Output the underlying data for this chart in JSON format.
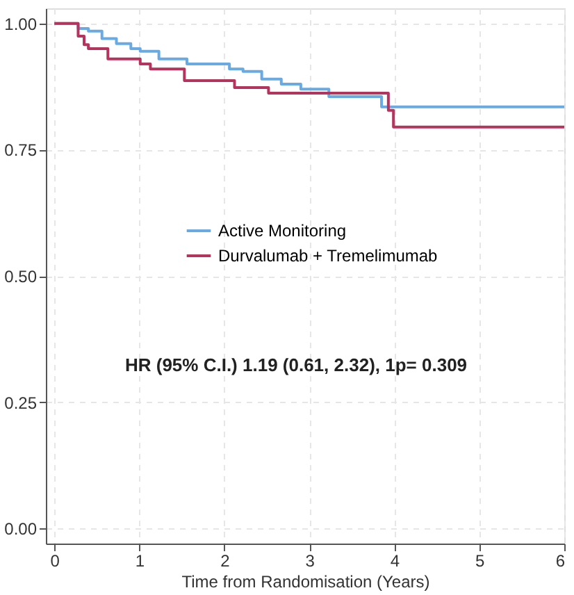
{
  "chart_data": {
    "type": "step",
    "xlabel": "Time from Randomisation (Years)",
    "xlim": [
      -0.1,
      6.0
    ],
    "xticks": [
      0,
      1,
      2,
      3,
      4,
      5,
      6
    ],
    "ylim": [
      -0.03,
      1.03
    ],
    "yticks": [
      {
        "value": 0,
        "label": "0.00"
      },
      {
        "value": 0.25,
        "label": "0.25"
      },
      {
        "value": 0.5,
        "label": "0.50"
      },
      {
        "value": 0.75,
        "label": "0.75"
      },
      {
        "value": 1,
        "label": "1.00"
      }
    ],
    "grid": true,
    "legend": "center",
    "line_style": "solid",
    "marker": "none",
    "annotations": [
      "HR (95% C.I.) 1.19 (0.61, 2.32), 1p= 0.309"
    ],
    "series": [
      {
        "name": "Active Monitoring",
        "color": "#6aaae2",
        "x": [
          0,
          0.28,
          0.4,
          0.56,
          0.73,
          0.9,
          1.01,
          1.23,
          1.56,
          2.06,
          2.22,
          2.44,
          2.67,
          2.9,
          3.23,
          3.85,
          6.0
        ],
        "values": [
          1.0,
          0.99,
          0.985,
          0.97,
          0.96,
          0.95,
          0.945,
          0.93,
          0.92,
          0.91,
          0.905,
          0.89,
          0.88,
          0.87,
          0.855,
          0.835,
          0.835
        ]
      },
      {
        "name": "Durvalumab + Tremelimumab",
        "color": "#b5345e",
        "x": [
          0,
          0.28,
          0.35,
          0.4,
          0.63,
          1.01,
          1.13,
          1.53,
          2.12,
          2.52,
          3.93,
          3.99,
          6.0
        ],
        "values": [
          1.0,
          0.975,
          0.958,
          0.95,
          0.93,
          0.92,
          0.91,
          0.887,
          0.873,
          0.862,
          0.828,
          0.795,
          0.795
        ]
      }
    ]
  }
}
